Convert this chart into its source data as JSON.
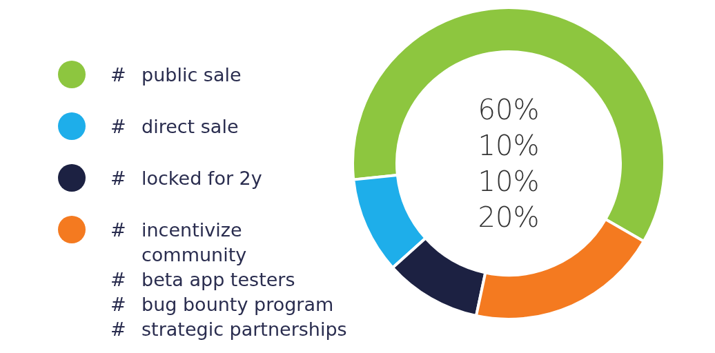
{
  "chart_data": {
    "type": "donut",
    "categories": [
      "# public sale",
      "# direct sale",
      "# locked for 2y",
      "# incentivize community"
    ],
    "values": [
      60,
      10,
      10,
      20
    ],
    "colors": [
      "#8dc63f",
      "#1eaeea",
      "#1c2142",
      "#f47a20"
    ],
    "value_labels": [
      "60%",
      "10%",
      "10%",
      "20%"
    ],
    "legend": "left",
    "annotations": [
      "# beta app testers",
      "# bug bounty program",
      "# strategic partnerships"
    ]
  }
}
